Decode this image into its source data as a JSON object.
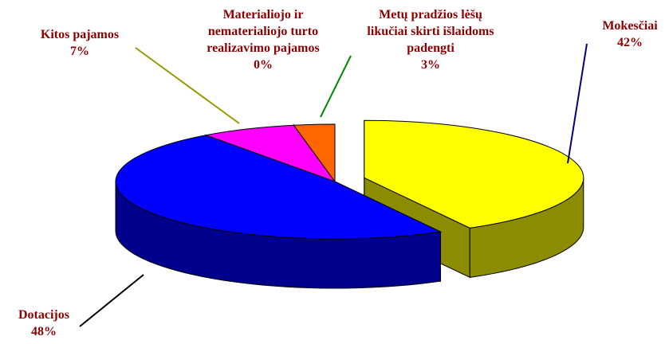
{
  "chart_data": {
    "type": "pie3d",
    "categories": [
      "Mokesčiai",
      "Dotacijos",
      "Kitos pajamos",
      "Materialiojo ir nematerialiojo turto realizavimo pajamos",
      "Metų pradžios lėšų likučiai skirti išlaidoms padengti"
    ],
    "values": [
      42,
      48,
      7,
      0,
      3
    ],
    "value_labels": [
      "42%",
      "48%",
      "7%",
      "0%",
      "3%"
    ],
    "colors": [
      "#ffff00",
      "#0000ff",
      "#ff00ff",
      "#00cc00",
      "#ff6600"
    ]
  }
}
